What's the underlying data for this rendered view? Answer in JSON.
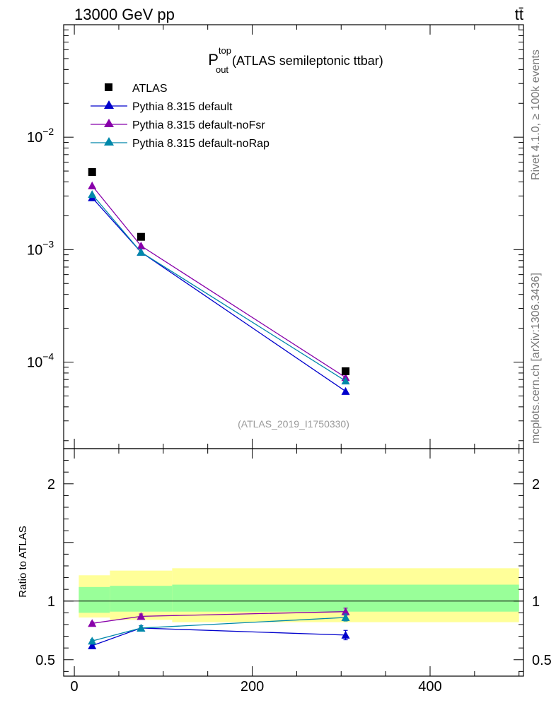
{
  "header": {
    "energy_label": "13000 GeV pp",
    "process_label": "tt̄"
  },
  "side_labels": {
    "rivet": "Rivet 4.1.0, ≥ 100k events",
    "mcplots": "mcplots.cern.ch [arXiv:1306.3436]"
  },
  "chart_data": {
    "type": "line",
    "title": {
      "main": "P",
      "sup": "top",
      "sub": "out",
      "rest": " (ATLAS semileptonic ttbar)"
    },
    "analysis_label": "(ATLAS_2019_I1750330)",
    "x": [
      20,
      75,
      305
    ],
    "xlim": [
      -12,
      505
    ],
    "xticks": [
      0,
      200,
      400
    ],
    "xtick_labels": [
      "0",
      "200",
      "400"
    ],
    "main_ylim": [
      1.7e-05,
      0.1
    ],
    "main_yticks": [
      0.0001,
      0.001,
      0.01
    ],
    "main_ytick_labels": [
      {
        "base": "10",
        "exp": "−4"
      },
      {
        "base": "10",
        "exp": "−3"
      },
      {
        "base": "10",
        "exp": "−2"
      }
    ],
    "ratio_ylabel": "Ratio to ATLAS",
    "ratio_ylim": [
      0.36,
      2.3
    ],
    "ratio_yticks": [
      0.5,
      1,
      2
    ],
    "ratio_ytick_labels": [
      "0.5",
      "1",
      "2"
    ],
    "data": {
      "name": "ATLAS",
      "color": "#000000",
      "values": [
        0.0049,
        0.0013,
        8.3e-05
      ],
      "bins": [
        [
          5,
          40
        ],
        [
          40,
          110
        ],
        [
          110,
          500
        ]
      ],
      "band_inner": [
        [
          0.9,
          1.12
        ],
        [
          0.91,
          1.13
        ],
        [
          0.91,
          1.14
        ]
      ],
      "band_outer": [
        [
          0.86,
          1.22
        ],
        [
          0.84,
          1.26
        ],
        [
          0.82,
          1.28
        ]
      ],
      "band_inner_color": "#99ff99",
      "band_outer_color": "#ffff99"
    },
    "series": [
      {
        "name": "Pythia 8.315 default",
        "color": "#0000cc",
        "values": [
          0.0029,
          0.00095,
          5.5e-05
        ],
        "ratio": [
          0.62,
          0.77,
          0.71
        ],
        "ratio_err": [
          0.012,
          0.02,
          0.04
        ]
      },
      {
        "name": "Pythia 8.315 default-noFsr",
        "color": "#8800aa",
        "values": [
          0.0037,
          0.00108,
          7.3e-05
        ],
        "ratio": [
          0.81,
          0.87,
          0.91
        ],
        "ratio_err": [
          0.012,
          0.02,
          0.03
        ]
      },
      {
        "name": "Pythia 8.315 default-noRap",
        "color": "#0088aa",
        "values": [
          0.0031,
          0.00095,
          6.8e-05
        ],
        "ratio": [
          0.66,
          0.77,
          0.86
        ],
        "ratio_err": [
          0.012,
          0.02,
          0.03
        ]
      }
    ]
  }
}
